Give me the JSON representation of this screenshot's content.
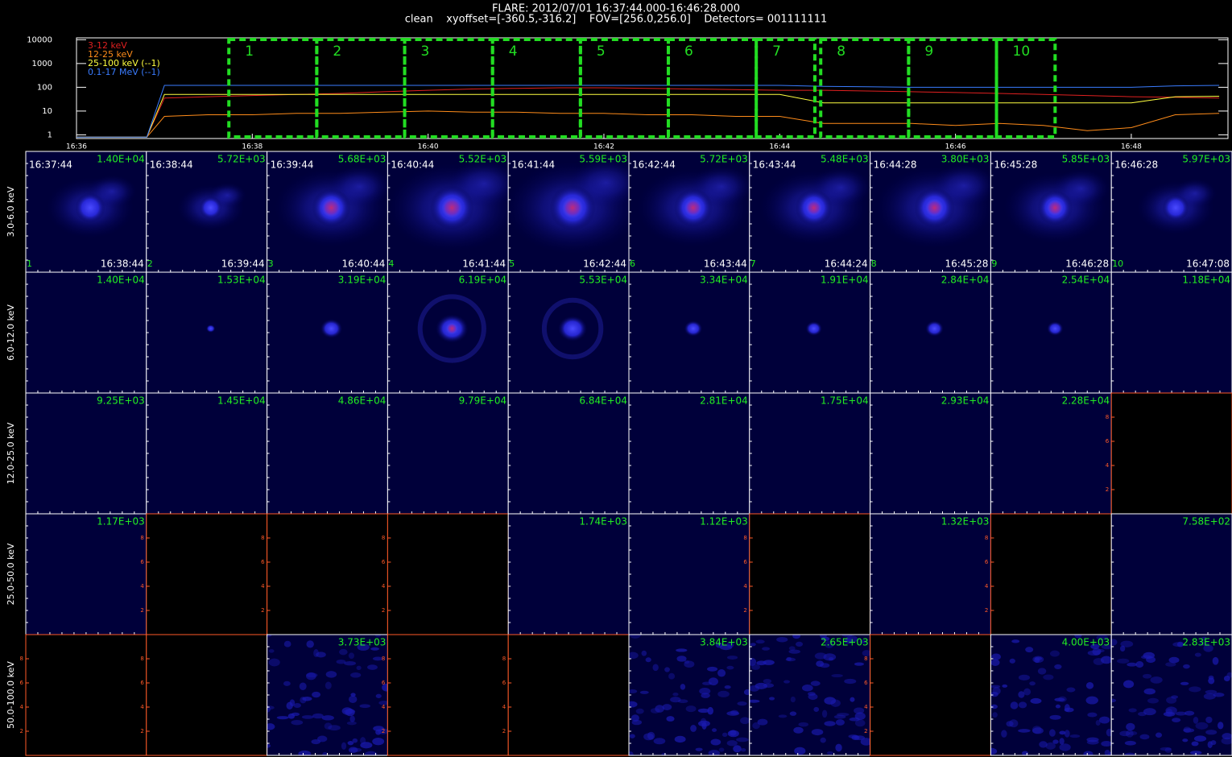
{
  "chart_data": {
    "type": "line",
    "title": "FLARE: 2012/07/01 16:37:44.000-16:46:28.000",
    "subtitle": "clean    xyoffset=[-360.5,-316.2]    FOV=[256.0,256.0]    Detectors= 001111111",
    "x": [
      996,
      996.8,
      997,
      997.5,
      998,
      998.5,
      999,
      999.5,
      1000,
      1000.5,
      1001,
      1001.5,
      1002,
      1002.5,
      1003,
      1003.5,
      1004,
      1004.5,
      1005,
      1005.5,
      1006,
      1006.5,
      1007,
      1007.5,
      1008,
      1008.5,
      1009
    ],
    "xlim": [
      996,
      1009.1
    ],
    "xticks": [
      {
        "value": 996,
        "label": "16:36"
      },
      {
        "value": 998,
        "label": "16:38"
      },
      {
        "value": 1000,
        "label": "16:40"
      },
      {
        "value": 1002,
        "label": "16:42"
      },
      {
        "value": 1004,
        "label": "16:44"
      },
      {
        "value": 1006,
        "label": "16:46"
      },
      {
        "value": 1008,
        "label": "16:48"
      }
    ],
    "ylim": [
      0.7,
      12000
    ],
    "yticks": [
      1,
      10,
      100,
      1000,
      10000
    ],
    "ylog": true,
    "grid": false,
    "legend": "upper left",
    "series": [
      {
        "name": "3-12 keV",
        "color": "#e02020",
        "values": [
          0.8,
          0.8,
          35,
          40,
          45,
          50,
          55,
          65,
          75,
          85,
          90,
          95,
          95,
          90,
          85,
          80,
          75,
          75,
          70,
          65,
          60,
          55,
          50,
          45,
          40,
          38,
          35
        ]
      },
      {
        "name": "12-25 keV",
        "color": "#ff8c1a",
        "values": [
          0.8,
          0.8,
          6,
          7,
          7,
          8,
          8,
          9,
          10,
          9,
          9,
          8,
          8,
          7,
          7,
          6,
          6,
          3,
          3,
          3,
          2.5,
          3,
          2.5,
          1.5,
          2,
          7,
          8
        ]
      },
      {
        "name": "25-100 keV (--1)",
        "color": "#ffff40",
        "values": [
          0.8,
          0.8,
          50,
          50,
          50,
          50,
          50,
          50,
          50,
          50,
          50,
          50,
          50,
          50,
          50,
          50,
          50,
          22,
          22,
          22,
          22,
          22,
          22,
          22,
          22,
          40,
          42
        ]
      },
      {
        "name": "0.1-17 MeV (--1)",
        "color": "#3a7cff",
        "values": [
          0.8,
          0.8,
          120,
          120,
          120,
          120,
          120,
          120,
          120,
          120,
          120,
          120,
          120,
          120,
          120,
          120,
          120,
          110,
          105,
          100,
          100,
          100,
          100,
          100,
          100,
          115,
          120
        ]
      }
    ]
  },
  "image_grid": {
    "columns": [
      {
        "index": "1",
        "start": "16:37:44",
        "end": "16:38:44"
      },
      {
        "index": "2",
        "start": "16:38:44",
        "end": "16:39:44"
      },
      {
        "index": "3",
        "start": "16:39:44",
        "end": "16:40:44"
      },
      {
        "index": "4",
        "start": "16:40:44",
        "end": "16:41:44"
      },
      {
        "index": "5",
        "start": "16:41:44",
        "end": "16:42:44"
      },
      {
        "index": "6",
        "start": "16:42:44",
        "end": "16:43:44"
      },
      {
        "index": "7",
        "start": "16:43:44",
        "end": "16:44:24"
      },
      {
        "index": "8",
        "start": "16:44:28",
        "end": "16:45:28"
      },
      {
        "index": "9",
        "start": "16:45:28",
        "end": "16:46:28"
      },
      {
        "index": "10",
        "start": "16:46:28",
        "end": "16:47:08"
      }
    ],
    "rows": [
      {
        "band": "3.0-6.0 keV",
        "cells": [
          "1.40E+04",
          "5.72E+03",
          "5.68E+03",
          "5.52E+03",
          "5.59E+03",
          "5.72E+03",
          "5.48E+03",
          "3.80E+03",
          "5.85E+03",
          "5.97E+03"
        ]
      },
      {
        "band": "6.0-12.0 keV",
        "cells": [
          "1.40E+04",
          "1.53E+04",
          "3.19E+04",
          "6.19E+04",
          "5.53E+04",
          "3.34E+04",
          "1.91E+04",
          "2.84E+04",
          "2.54E+04",
          "1.18E+04"
        ]
      },
      {
        "band": "12.0-25.0 keV",
        "cells": [
          "9.25E+03",
          "1.45E+04",
          "4.86E+04",
          "9.79E+04",
          "6.84E+04",
          "2.81E+04",
          "1.75E+04",
          "2.93E+04",
          "2.28E+04",
          null
        ]
      },
      {
        "band": "25.0-50.0 keV",
        "cells": [
          "1.17E+03",
          null,
          null,
          null,
          "1.74E+03",
          "1.12E+03",
          null,
          "1.32E+03",
          null,
          "7.58E+02"
        ]
      },
      {
        "band": "50.0-100.0 keV",
        "cells": [
          null,
          null,
          "3.73E+03",
          null,
          null,
          "3.84E+03",
          "2.65E+03",
          null,
          "4.00E+03",
          "2.83E+03"
        ]
      }
    ],
    "empty_plot": {
      "ylim": [
        0,
        10
      ],
      "yticks": [
        2,
        4,
        6,
        8
      ]
    }
  }
}
